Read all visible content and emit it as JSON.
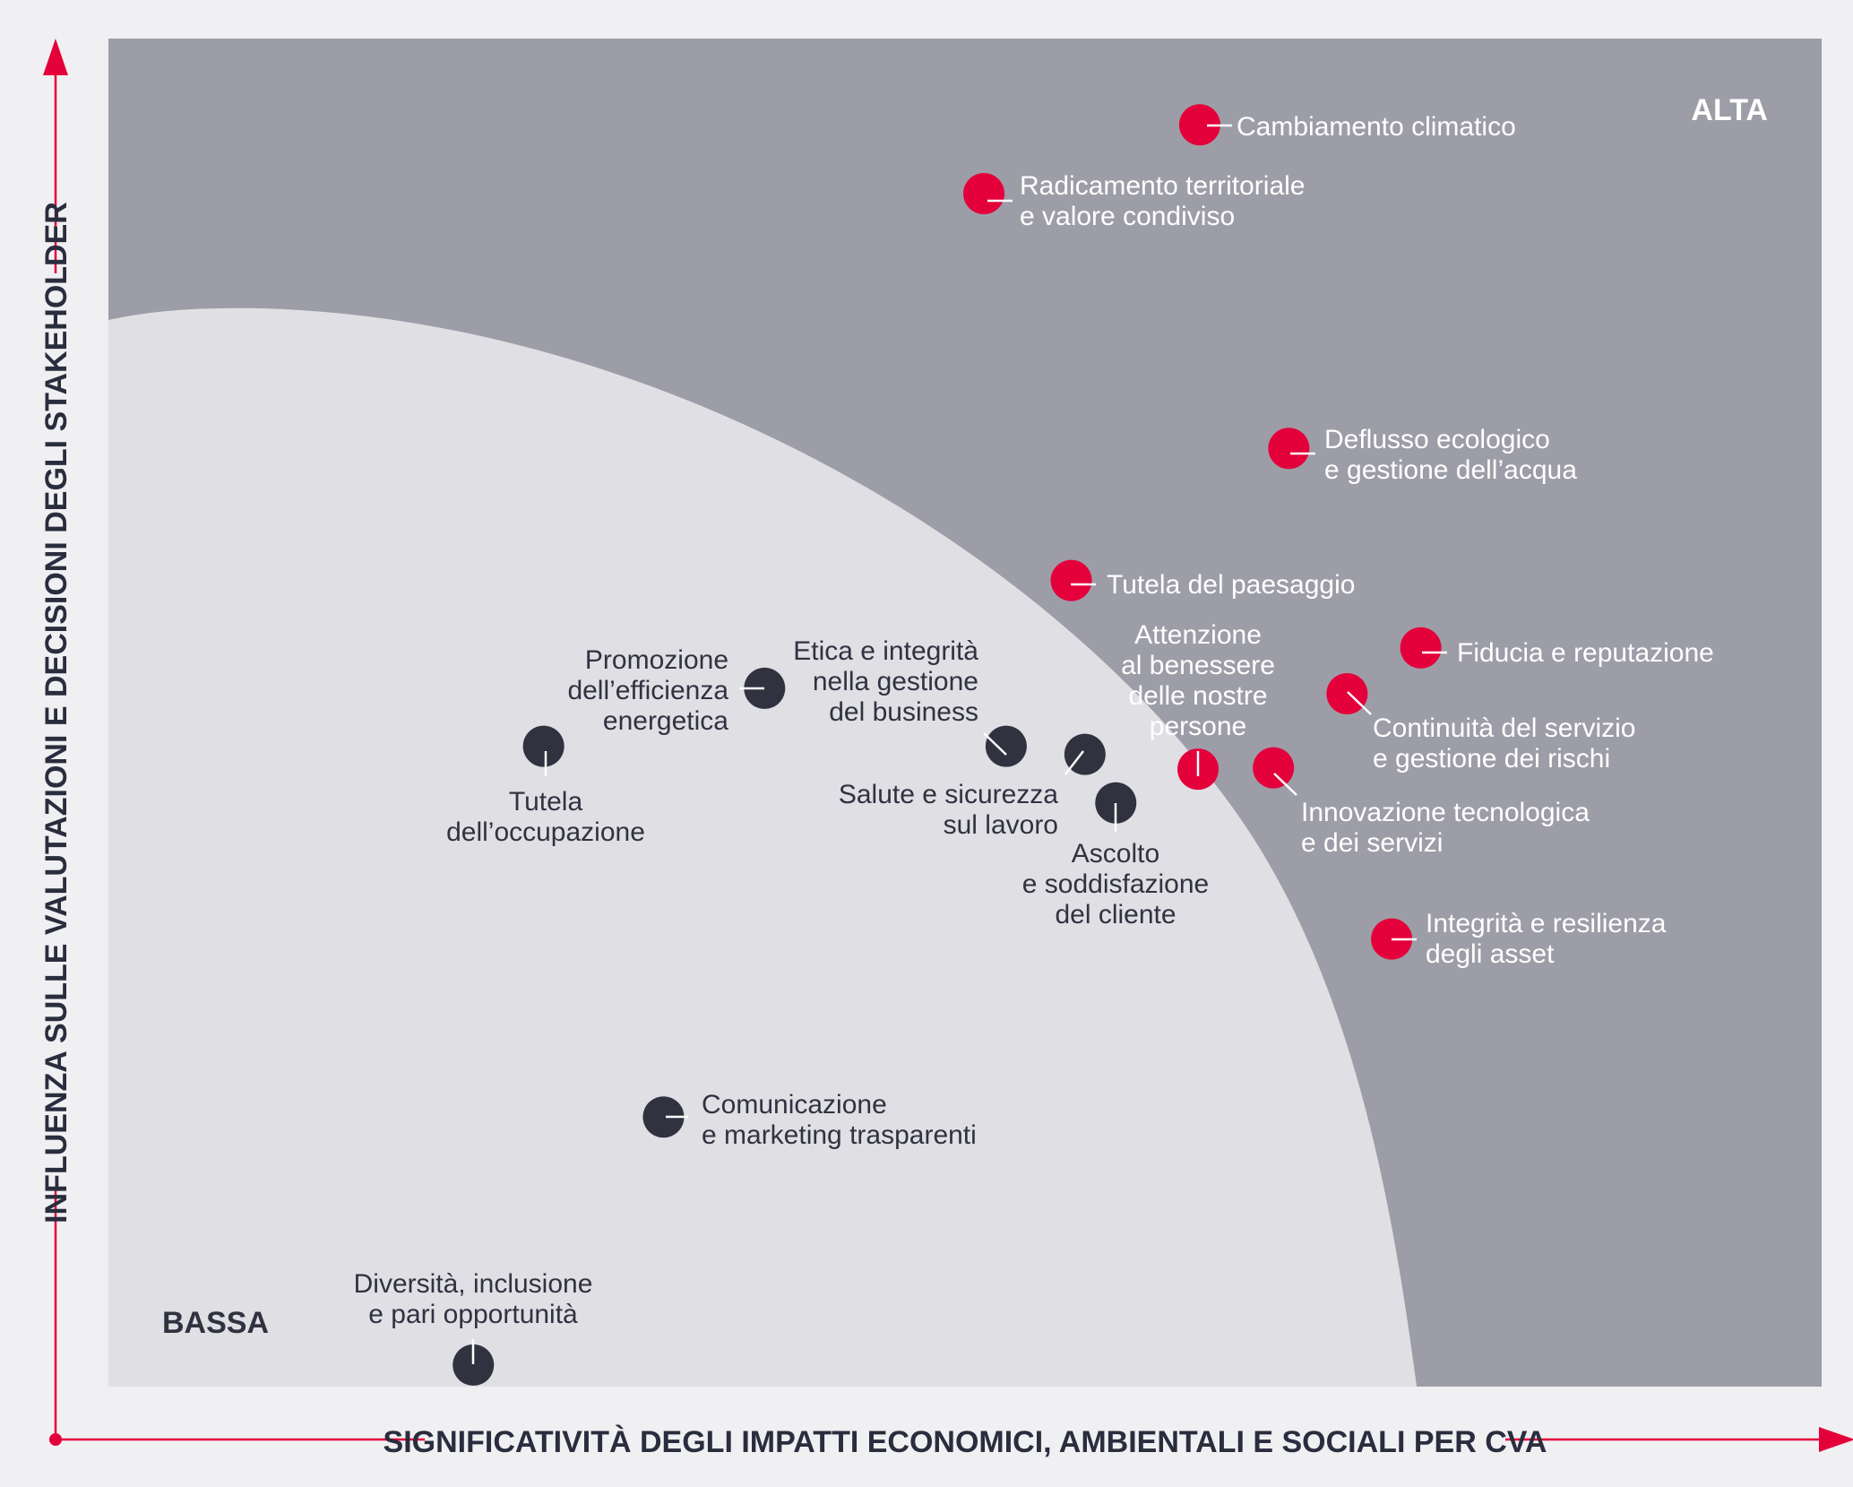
{
  "chart_data": {
    "type": "scatter",
    "title": "",
    "xlabel": "SIGNIFICATIVITÀ DEGLI IMPATTI ECONOMICI, AMBIENTALI E SOCIALI PER CVA",
    "ylabel": "INFLUENZA SULLE VALUTAZIONI E DECISIONI DEGLI STAKEHOLDER",
    "xlim": [
      0,
      100
    ],
    "ylim": [
      0,
      100
    ],
    "grid": false,
    "corner_labels": {
      "high": "ALTA",
      "low": "BASSA"
    },
    "colors": {
      "material": "#e4003a",
      "non_material": "#30323f",
      "material_area": "#9d9da8",
      "non_material_area": "#dfdfe4",
      "axis": "#e4003a",
      "high_label": "#ffffff",
      "low_label": "#30323f"
    },
    "series": [
      {
        "key": "material",
        "points": [
          {
            "label": [
              "Cambiamento climatico"
            ],
            "x": 63.7,
            "y": 93.6
          },
          {
            "label": [
              "Radicamento territoriale",
              "e valore condiviso"
            ],
            "x": 51.1,
            "y": 88.5
          },
          {
            "label": [
              "Deflusso ecologico",
              "e gestione dell’acqua"
            ],
            "x": 68.9,
            "y": 69.6
          },
          {
            "label": [
              "Tutela del paesaggio"
            ],
            "x": 56.2,
            "y": 59.8
          },
          {
            "label": [
              "Fiducia e reputazione"
            ],
            "x": 76.6,
            "y": 54.8
          },
          {
            "label": [
              "Continuità del servizio",
              "e gestione dei rischi"
            ],
            "x": 72.3,
            "y": 51.4
          },
          {
            "label": [
              "Attenzione",
              "al benessere",
              "delle nostre",
              "persone"
            ],
            "x": 63.6,
            "y": 45.8
          },
          {
            "label": [
              "Innovazione tecnologica",
              "e dei servizi"
            ],
            "x": 68.0,
            "y": 45.9
          },
          {
            "label": [
              "Integrità e resilienza",
              "degli asset"
            ],
            "x": 74.9,
            "y": 33.2
          }
        ]
      },
      {
        "key": "non_material",
        "points": [
          {
            "label": [
              "Promozione",
              "dell’efficienza",
              "energetica"
            ],
            "x": 38.3,
            "y": 51.8
          },
          {
            "label": [
              "Tutela",
              "dell’occupazione"
            ],
            "x": 25.4,
            "y": 47.5
          },
          {
            "label": [
              "Etica e integrità",
              "nella gestione",
              "del business"
            ],
            "x": 52.4,
            "y": 47.5
          },
          {
            "label": [
              "Salute e sicurezza",
              "sul lavoro"
            ],
            "x": 57.0,
            "y": 46.9
          },
          {
            "label": [
              "Ascolto",
              "e soddisfazione",
              "del cliente"
            ],
            "x": 58.8,
            "y": 43.3
          },
          {
            "label": [
              "Comunicazione",
              "e marketing trasparenti"
            ],
            "x": 32.4,
            "y": 20.0
          },
          {
            "label": [
              "Diversità, inclusione",
              "e pari opportunità"
            ],
            "x": 21.3,
            "y": 1.6
          }
        ]
      }
    ]
  }
}
